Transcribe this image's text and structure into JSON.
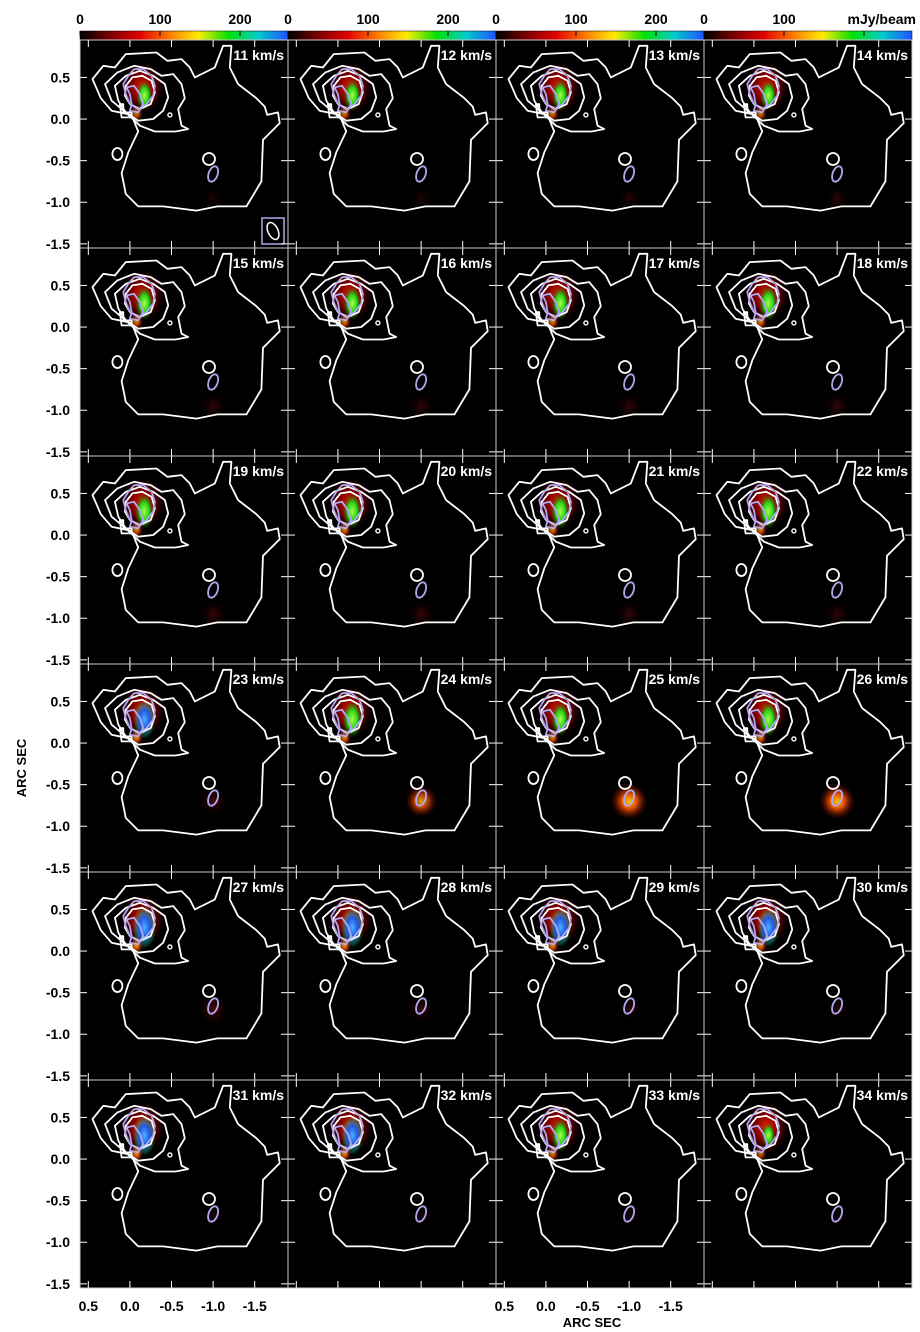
{
  "chart_data": {
    "type": "heatmap",
    "description_kind": "channel-map",
    "unit_label": "mJy/beam",
    "colorbar": {
      "tick_labels": [
        "0",
        "100",
        "200"
      ],
      "ticks": [
        0,
        100,
        200
      ],
      "range": [
        0,
        260
      ],
      "colors": [
        "#000000",
        "#7a0000",
        "#e00000",
        "#ff7a00",
        "#ffee00",
        "#00e000",
        "#00cccc",
        "#2050ff"
      ]
    },
    "xlabel": "ARC SEC",
    "ylabel": "ARC SEC",
    "x_ticks": [
      0.5,
      0.0,
      -0.5,
      -1.0,
      -1.5
    ],
    "x_tick_labels": [
      "0.5",
      "0.0",
      "-0.5",
      "-1.0",
      "-1.5"
    ],
    "y_ticks": [
      0.5,
      0.0,
      -0.5,
      -1.0,
      -1.5
    ],
    "y_tick_labels": [
      "0.5",
      "0.0",
      "-0.5",
      "-1.0",
      "-1.5"
    ],
    "xlim": [
      0.6,
      -1.9
    ],
    "ylim": [
      -1.55,
      0.95
    ],
    "grid": false,
    "panels": [
      {
        "label": "11 km/s",
        "velocity": 11,
        "peak_ne": 180,
        "peak_sw": 10
      },
      {
        "label": "12 km/s",
        "velocity": 12,
        "peak_ne": 190,
        "peak_sw": 15
      },
      {
        "label": "13 km/s",
        "velocity": 13,
        "peak_ne": 190,
        "peak_sw": 25
      },
      {
        "label": "14 km/s",
        "velocity": 14,
        "peak_ne": 180,
        "peak_sw": 35
      },
      {
        "label": "15 km/s",
        "velocity": 15,
        "peak_ne": 200,
        "peak_sw": 45
      },
      {
        "label": "16 km/s",
        "velocity": 16,
        "peak_ne": 200,
        "peak_sw": 45
      },
      {
        "label": "17 km/s",
        "velocity": 17,
        "peak_ne": 200,
        "peak_sw": 45
      },
      {
        "label": "18 km/s",
        "velocity": 18,
        "peak_ne": 210,
        "peak_sw": 50
      },
      {
        "label": "19 km/s",
        "velocity": 19,
        "peak_ne": 210,
        "peak_sw": 55
      },
      {
        "label": "20 km/s",
        "velocity": 20,
        "peak_ne": 210,
        "peak_sw": 55
      },
      {
        "label": "21 km/s",
        "velocity": 21,
        "peak_ne": 210,
        "peak_sw": 50
      },
      {
        "label": "22 km/s",
        "velocity": 22,
        "peak_ne": 210,
        "peak_sw": 45
      },
      {
        "label": "23 km/s",
        "velocity": 23,
        "peak_ne": 230,
        "peak_sw": 80
      },
      {
        "label": "24 km/s",
        "velocity": 24,
        "peak_ne": 220,
        "peak_sw": 100
      },
      {
        "label": "25 km/s",
        "velocity": 25,
        "peak_ne": 200,
        "peak_sw": 140
      },
      {
        "label": "26 km/s",
        "velocity": 26,
        "peak_ne": 210,
        "peak_sw": 130
      },
      {
        "label": "27 km/s",
        "velocity": 27,
        "peak_ne": 250,
        "peak_sw": 90
      },
      {
        "label": "28 km/s",
        "velocity": 28,
        "peak_ne": 240,
        "peak_sw": 60
      },
      {
        "label": "29 km/s",
        "velocity": 29,
        "peak_ne": 230,
        "peak_sw": 40
      },
      {
        "label": "30 km/s",
        "velocity": 30,
        "peak_ne": 230,
        "peak_sw": 30
      },
      {
        "label": "31 km/s",
        "velocity": 31,
        "peak_ne": 240,
        "peak_sw": 20
      },
      {
        "label": "32 km/s",
        "velocity": 32,
        "peak_ne": 230,
        "peak_sw": 15
      },
      {
        "label": "33 km/s",
        "velocity": 33,
        "peak_ne": 200,
        "peak_sw": 10
      },
      {
        "label": "34 km/s",
        "velocity": 34,
        "peak_ne": 150,
        "peak_sw": 5
      }
    ],
    "contour_color": "#ffffff",
    "inner_contour_color": "#b0a8f0"
  }
}
